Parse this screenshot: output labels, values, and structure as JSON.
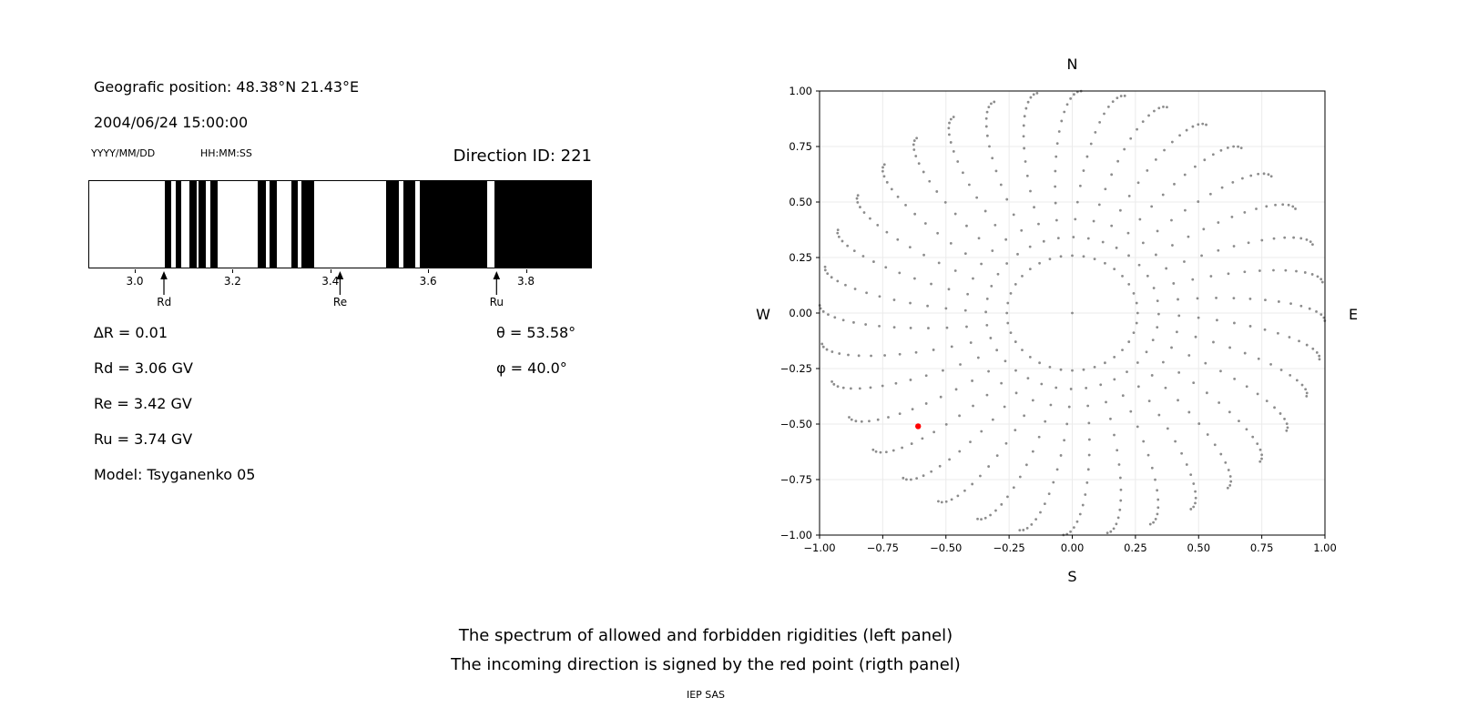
{
  "header": {
    "geo_position": "Geografic position: 48.38°N 21.43°E",
    "datetime": "2004/06/24 15:00:00",
    "date_format_label": "YYYY/MM/DD",
    "time_format_label": "HH:MM:SS",
    "direction_id_label": "Direction ID: 221"
  },
  "spectrum_annotations": {
    "delta_r": "∆R = 0.01",
    "rd": "Rd = 3.06 GV",
    "re": "Re = 3.42 GV",
    "ru": "Ru = 3.74 GV",
    "model": "Model: Tsyganenko 05",
    "theta": "θ = 53.58°",
    "phi": "φ = 40.0°"
  },
  "captions": {
    "line1": "The spectrum of allowed and forbidden rigidities (left panel)",
    "line2": "The incoming direction is signed by the red point (rigth panel)",
    "credit": "IEP SAS"
  },
  "chart_data": [
    {
      "type": "bar",
      "name": "rigidity-spectrum",
      "description": "Cosmic-ray cutoff penumbra barcode: black bands = allowed rigidities, white = forbidden",
      "xlim": [
        2.905,
        3.935
      ],
      "xtick_values": [
        3.0,
        3.2,
        3.4,
        3.6,
        3.8
      ],
      "xtick_labels": [
        "3.0",
        "3.2",
        "3.4",
        "3.6",
        "3.8"
      ],
      "delta_r_gv": 0.01,
      "allowed_segments_gv": [
        [
          3.06,
          3.074
        ],
        [
          3.082,
          3.093
        ],
        [
          3.11,
          3.125
        ],
        [
          3.13,
          3.145
        ],
        [
          3.153,
          3.168
        ],
        [
          3.251,
          3.268
        ],
        [
          3.276,
          3.291
        ],
        [
          3.32,
          3.334
        ],
        [
          3.341,
          3.367
        ],
        [
          3.514,
          3.54
        ],
        [
          3.549,
          3.574
        ],
        [
          3.583,
          3.722
        ],
        [
          3.737,
          3.935
        ]
      ],
      "markers": [
        {
          "label": "Rd",
          "value_gv": 3.06
        },
        {
          "label": "Re",
          "value_gv": 3.42
        },
        {
          "label": "Ru",
          "value_gv": 3.74
        }
      ],
      "bar_color": "#000000",
      "background_color": "#ffffff"
    },
    {
      "type": "scatter",
      "name": "asymptotic-directions",
      "xlim": [
        -1.0,
        1.0
      ],
      "ylim": [
        -1.0,
        1.0
      ],
      "xtick_values": [
        -1.0,
        -0.75,
        -0.5,
        -0.25,
        0,
        0.25,
        0.5,
        0.75,
        1.0
      ],
      "xtick_labels": [
        "−1.00",
        "−0.75",
        "−0.50",
        "−0.25",
        "0.00",
        "0.25",
        "0.50",
        "0.75",
        "1.00"
      ],
      "ytick_values": [
        1.0,
        0.75,
        0.5,
        0.25,
        0,
        -0.25,
        -0.5,
        -0.75,
        -1.0
      ],
      "ytick_labels": [
        "1.00",
        "0.75",
        "0.50",
        "0.25",
        "0.00",
        "−0.25",
        "−0.50",
        "−0.75",
        "−1.00"
      ],
      "compass": {
        "top": "N",
        "bottom": "S",
        "left": "W",
        "right": "E"
      },
      "grid": true,
      "grid_color": "#ebebeb",
      "gray_pattern": {
        "description": "36 azimuthal spokes of small gray dots; radius = sin(zenith), zenith 15–90° step 5°, slight clockwise twist toward the rim, plus one center dot",
        "azimuth_count": 36,
        "azimuth_step_deg": 10,
        "zenith_start_deg": 15,
        "zenith_end_deg": 90,
        "zenith_step_deg": 5,
        "twist_deg": 12,
        "center_dot": true,
        "color": "#8c8c8c",
        "dot_radius_px": 1.4
      },
      "red_point": {
        "x": -0.61,
        "y": -0.51,
        "color": "#ff0000",
        "radius_px": 3.2
      }
    }
  ]
}
